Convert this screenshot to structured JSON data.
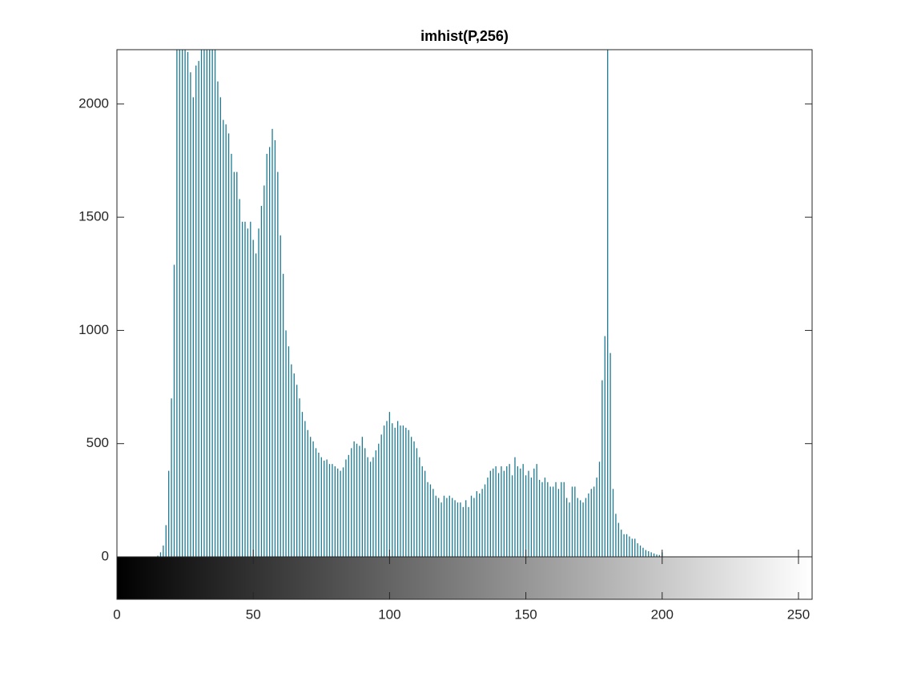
{
  "chart_data": {
    "type": "stem",
    "title": "imhist(P,256)",
    "color": "#1b7a92",
    "x": [
      0,
      1,
      2,
      3,
      4,
      5,
      6,
      7,
      8,
      9,
      10,
      11,
      12,
      13,
      14,
      15,
      16,
      17,
      18,
      19,
      20,
      21,
      22,
      23,
      24,
      25,
      26,
      27,
      28,
      29,
      30,
      31,
      32,
      33,
      34,
      35,
      36,
      37,
      38,
      39,
      40,
      41,
      42,
      43,
      44,
      45,
      46,
      47,
      48,
      49,
      50,
      51,
      52,
      53,
      54,
      55,
      56,
      57,
      58,
      59,
      60,
      61,
      62,
      63,
      64,
      65,
      66,
      67,
      68,
      69,
      70,
      71,
      72,
      73,
      74,
      75,
      76,
      77,
      78,
      79,
      80,
      81,
      82,
      83,
      84,
      85,
      86,
      87,
      88,
      89,
      90,
      91,
      92,
      93,
      94,
      95,
      96,
      97,
      98,
      99,
      100,
      101,
      102,
      103,
      104,
      105,
      106,
      107,
      108,
      109,
      110,
      111,
      112,
      113,
      114,
      115,
      116,
      117,
      118,
      119,
      120,
      121,
      122,
      123,
      124,
      125,
      126,
      127,
      128,
      129,
      130,
      131,
      132,
      133,
      134,
      135,
      136,
      137,
      138,
      139,
      140,
      141,
      142,
      143,
      144,
      145,
      146,
      147,
      148,
      149,
      150,
      151,
      152,
      153,
      154,
      155,
      156,
      157,
      158,
      159,
      160,
      161,
      162,
      163,
      164,
      165,
      166,
      167,
      168,
      169,
      170,
      171,
      172,
      173,
      174,
      175,
      176,
      177,
      178,
      179,
      180,
      181,
      182,
      183,
      184,
      185,
      186,
      187,
      188,
      189,
      190,
      191,
      192,
      193,
      194,
      195,
      196,
      197,
      198,
      199,
      200,
      201,
      202,
      203,
      204,
      205,
      206,
      207,
      208,
      209,
      210,
      211,
      212,
      213,
      214,
      215,
      216,
      217,
      218,
      219,
      220,
      221,
      222,
      223,
      224,
      225,
      226,
      227,
      228,
      229,
      230,
      231,
      232,
      233,
      234,
      235,
      236,
      237,
      238,
      239,
      240,
      241,
      242,
      243,
      244,
      245,
      246,
      247,
      248,
      249,
      250,
      251,
      252,
      253,
      254,
      255
    ],
    "values": [
      0,
      0,
      0,
      0,
      0,
      0,
      0,
      0,
      0,
      0,
      0,
      0,
      0,
      0,
      0,
      5,
      20,
      50,
      140,
      380,
      700,
      1290,
      2400,
      2400,
      2260,
      2400,
      2230,
      2140,
      2030,
      2170,
      2190,
      2280,
      2400,
      2400,
      2300,
      2260,
      2250,
      2100,
      2030,
      1930,
      1910,
      1870,
      1780,
      1700,
      1700,
      1580,
      1480,
      1480,
      1450,
      1480,
      1400,
      1340,
      1450,
      1550,
      1640,
      1780,
      1810,
      1890,
      1840,
      1700,
      1420,
      1250,
      1000,
      930,
      850,
      810,
      760,
      700,
      640,
      600,
      560,
      530,
      510,
      480,
      460,
      440,
      425,
      430,
      410,
      410,
      400,
      390,
      380,
      395,
      430,
      450,
      480,
      510,
      500,
      490,
      530,
      480,
      440,
      420,
      440,
      470,
      500,
      540,
      580,
      600,
      640,
      590,
      570,
      600,
      580,
      580,
      570,
      560,
      530,
      510,
      480,
      440,
      400,
      380,
      330,
      320,
      300,
      270,
      260,
      240,
      270,
      260,
      270,
      260,
      250,
      240,
      240,
      220,
      250,
      220,
      270,
      260,
      290,
      280,
      300,
      320,
      350,
      380,
      390,
      400,
      370,
      400,
      380,
      400,
      410,
      360,
      440,
      400,
      390,
      410,
      360,
      380,
      350,
      390,
      410,
      340,
      330,
      350,
      330,
      310,
      310,
      330,
      300,
      330,
      330,
      260,
      240,
      310,
      310,
      260,
      250,
      240,
      260,
      280,
      300,
      310,
      350,
      420,
      780,
      975,
      2400,
      900,
      300,
      190,
      150,
      120,
      100,
      100,
      90,
      80,
      80,
      60,
      50,
      40,
      30,
      25,
      20,
      15,
      10,
      8,
      20,
      0,
      0,
      0,
      0,
      0,
      0,
      0,
      0,
      0,
      0,
      0,
      0,
      0,
      0,
      0,
      0,
      0,
      0,
      0,
      0,
      0,
      0,
      0,
      0,
      0,
      0,
      0,
      0,
      0,
      0,
      0,
      0,
      0,
      0,
      0,
      0,
      0,
      0,
      0,
      0,
      0,
      0,
      0,
      0,
      0,
      0,
      0,
      0,
      0,
      0,
      0,
      0,
      0,
      0,
      0
    ],
    "xlim": [
      0,
      255
    ],
    "xticks": [
      0,
      50,
      100,
      150,
      200,
      250
    ],
    "ylim": [
      0,
      2240
    ],
    "yticks": [
      0,
      500,
      1000,
      1500,
      2000
    ]
  }
}
